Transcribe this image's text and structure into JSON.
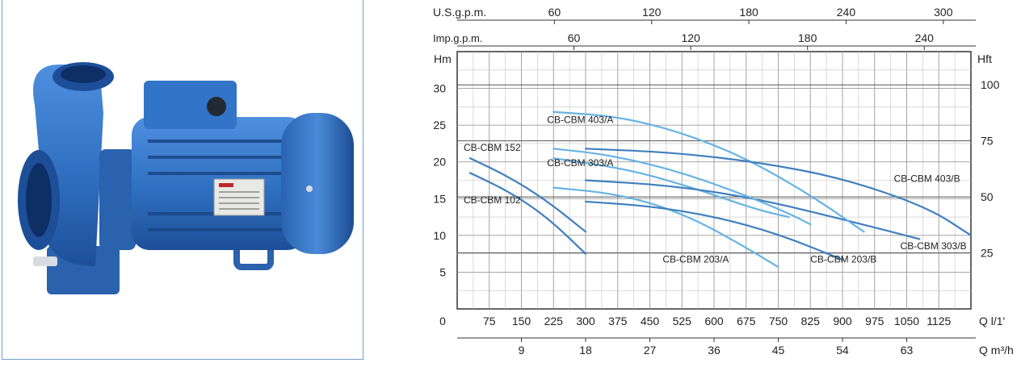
{
  "product_photo": {
    "name_plate": "",
    "body_color": "#2f6fc0",
    "frame_color": "#6f9fcf"
  },
  "chart_data": {
    "type": "line",
    "x": {
      "label": "Q l/1'",
      "unit": "l/min",
      "range": [
        0,
        1200
      ],
      "ticks": [
        0,
        75,
        150,
        225,
        300,
        375,
        450,
        525,
        600,
        675,
        750,
        825,
        900,
        975,
        1050,
        1125
      ],
      "tick_labels": [
        "0",
        "75",
        "150",
        "225",
        "300",
        "375",
        "450",
        "525",
        "600",
        "675",
        "750",
        "825",
        "900",
        "975",
        "1050",
        "1125"
      ]
    },
    "x_m3h": {
      "label": "Q m³/h",
      "ticks": [
        9,
        18,
        27,
        36,
        45,
        54,
        63
      ],
      "tick_labels": [
        "9",
        "18",
        "27",
        "36",
        "45",
        "54",
        "63"
      ]
    },
    "x_usgpm": {
      "label": "U.S.g.p.m.",
      "ticks": [
        60,
        120,
        180,
        240,
        300
      ],
      "tick_labels": [
        "60",
        "120",
        "180",
        "240",
        "300"
      ]
    },
    "x_impgpm": {
      "label": "Imp.g.p.m.",
      "ticks": [
        60,
        120,
        180,
        240
      ],
      "tick_labels": [
        "60",
        "120",
        "180",
        "240"
      ]
    },
    "y": {
      "label": "Hm",
      "unit": "m",
      "range": [
        0,
        35
      ],
      "ticks": [
        5,
        10,
        15,
        20,
        25,
        30
      ],
      "tick_labels": [
        "5",
        "10",
        "15",
        "20",
        "25",
        "30"
      ]
    },
    "y_ft": {
      "label": "Hft",
      "ticks": [
        25,
        50,
        75,
        100
      ],
      "tick_labels": [
        "25",
        "50",
        "75",
        "100"
      ]
    },
    "grid": true,
    "colors": {
      "dark": "#3f7fbf",
      "light": "#66b3e3"
    },
    "series": [
      {
        "name": "CB-CBM 102",
        "color": "dark",
        "x": [
          30,
          120,
          210,
          300
        ],
        "y": [
          18.5,
          16.0,
          12.5,
          7.5
        ]
      },
      {
        "name": "CB-CBM 152",
        "color": "dark",
        "x": [
          30,
          120,
          210,
          300
        ],
        "y": [
          20.5,
          18.0,
          14.7,
          10.5
        ]
      },
      {
        "name": "CB-CBM 203/A",
        "color": "light",
        "x": [
          225,
          350,
          450,
          550,
          650,
          750
        ],
        "y": [
          16.5,
          15.8,
          14.5,
          12.3,
          9.2,
          5.7
        ]
      },
      {
        "name": "CB-CBM 203/B",
        "color": "dark",
        "x": [
          300,
          450,
          600,
          750,
          900
        ],
        "y": [
          14.6,
          14.0,
          12.6,
          10.2,
          6.7
        ]
      },
      {
        "name": "CB-CBM 303/A",
        "color": "light",
        "x": [
          225,
          400,
          550,
          700,
          775
        ],
        "y": [
          20.5,
          19.0,
          16.5,
          13.5,
          12.5
        ]
      },
      {
        "name": "CB-CBM 303/B",
        "color": "dark",
        "x": [
          300,
          500,
          700,
          900,
          1080
        ],
        "y": [
          17.5,
          16.8,
          15.0,
          12.2,
          9.5
        ]
      },
      {
        "name": "CB-CBM 303/B",
        "color": "light",
        "x": [
          225,
          350,
          500,
          650,
          775,
          825
        ],
        "y": [
          21.8,
          21.0,
          19.0,
          16.0,
          13.0,
          11.5
        ]
      },
      {
        "name": "CB-CBM 403/A",
        "color": "light",
        "x": [
          225,
          375,
          525,
          675,
          825,
          950
        ],
        "y": [
          26.8,
          26.2,
          24.0,
          20.5,
          15.5,
          10.5
        ]
      },
      {
        "name": "CB-CBM 403/B",
        "color": "dark",
        "x": [
          300,
          500,
          700,
          900,
          1100,
          1200
        ],
        "y": [
          21.8,
          21.3,
          20.0,
          17.8,
          13.8,
          10.0
        ]
      }
    ],
    "annotations": [
      {
        "text": "CB-CBM 403/A",
        "x": 210,
        "y": 25.3
      },
      {
        "text": "CB-CBM 152",
        "x": 15,
        "y": 21.5
      },
      {
        "text": "CB-CBM 303/A",
        "x": 210,
        "y": 19.4
      },
      {
        "text": "CB-CBM 102",
        "x": 15,
        "y": 14.4
      },
      {
        "text": "CB-CBM 403/B",
        "x": 1020,
        "y": 17.3
      },
      {
        "text": "CB-CBM 303/B",
        "x": 1035,
        "y": 8.1
      },
      {
        "text": "CB-CBM 203/A",
        "x": 480,
        "y": 6.3
      },
      {
        "text": "CB-CBM 203/B",
        "x": 825,
        "y": 6.3
      }
    ]
  }
}
